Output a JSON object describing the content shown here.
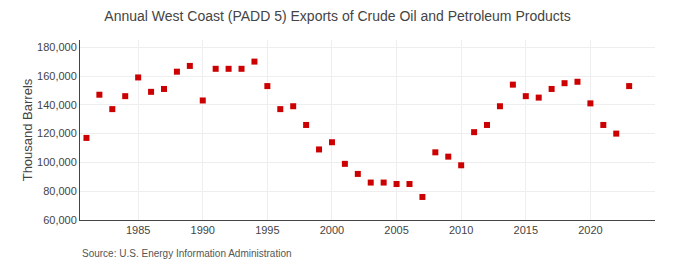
{
  "chart_data": {
    "type": "scatter",
    "title": "Annual West Coast (PADD 5) Exports of Crude Oil and Petroleum Products",
    "ylabel": "Thousand Barrels",
    "annotations": [
      "Source: U.S. Energy Information Administration"
    ],
    "x": [
      1981,
      1982,
      1983,
      1984,
      1985,
      1986,
      1987,
      1988,
      1989,
      1990,
      1991,
      1992,
      1993,
      1994,
      1995,
      1996,
      1997,
      1998,
      1999,
      2000,
      2001,
      2002,
      2003,
      2004,
      2005,
      2006,
      2007,
      2008,
      2009,
      2010,
      2011,
      2012,
      2013,
      2014,
      2015,
      2016,
      2017,
      2018,
      2019,
      2020,
      2021,
      2022,
      2023
    ],
    "values": [
      117000,
      147000,
      137000,
      146000,
      159000,
      149000,
      151000,
      163000,
      167000,
      143000,
      165000,
      165000,
      165000,
      170000,
      153000,
      137000,
      139000,
      126000,
      109000,
      114000,
      99000,
      92000,
      86000,
      86000,
      85000,
      85000,
      76000,
      107000,
      104000,
      98000,
      121000,
      126000,
      139000,
      154000,
      146000,
      145000,
      151000,
      155000,
      156000,
      141000,
      126000,
      120000,
      153000
    ],
    "color": "#cc0000",
    "marker": "square",
    "xlim": [
      1980.5,
      2025
    ],
    "xticks": [
      1985,
      1990,
      1995,
      2000,
      2005,
      2010,
      2015,
      2020
    ],
    "ylim": [
      60000,
      185000
    ],
    "yticks": [
      {
        "value": 60000,
        "label": "60,000"
      },
      {
        "value": 80000,
        "label": "80,000"
      },
      {
        "value": 100000,
        "label": "100,000"
      },
      {
        "value": 120000,
        "label": "120,000"
      },
      {
        "value": 140000,
        "label": "140,000"
      },
      {
        "value": 160000,
        "label": "160,000"
      },
      {
        "value": 180000,
        "label": "180,000"
      }
    ],
    "grid": true
  }
}
